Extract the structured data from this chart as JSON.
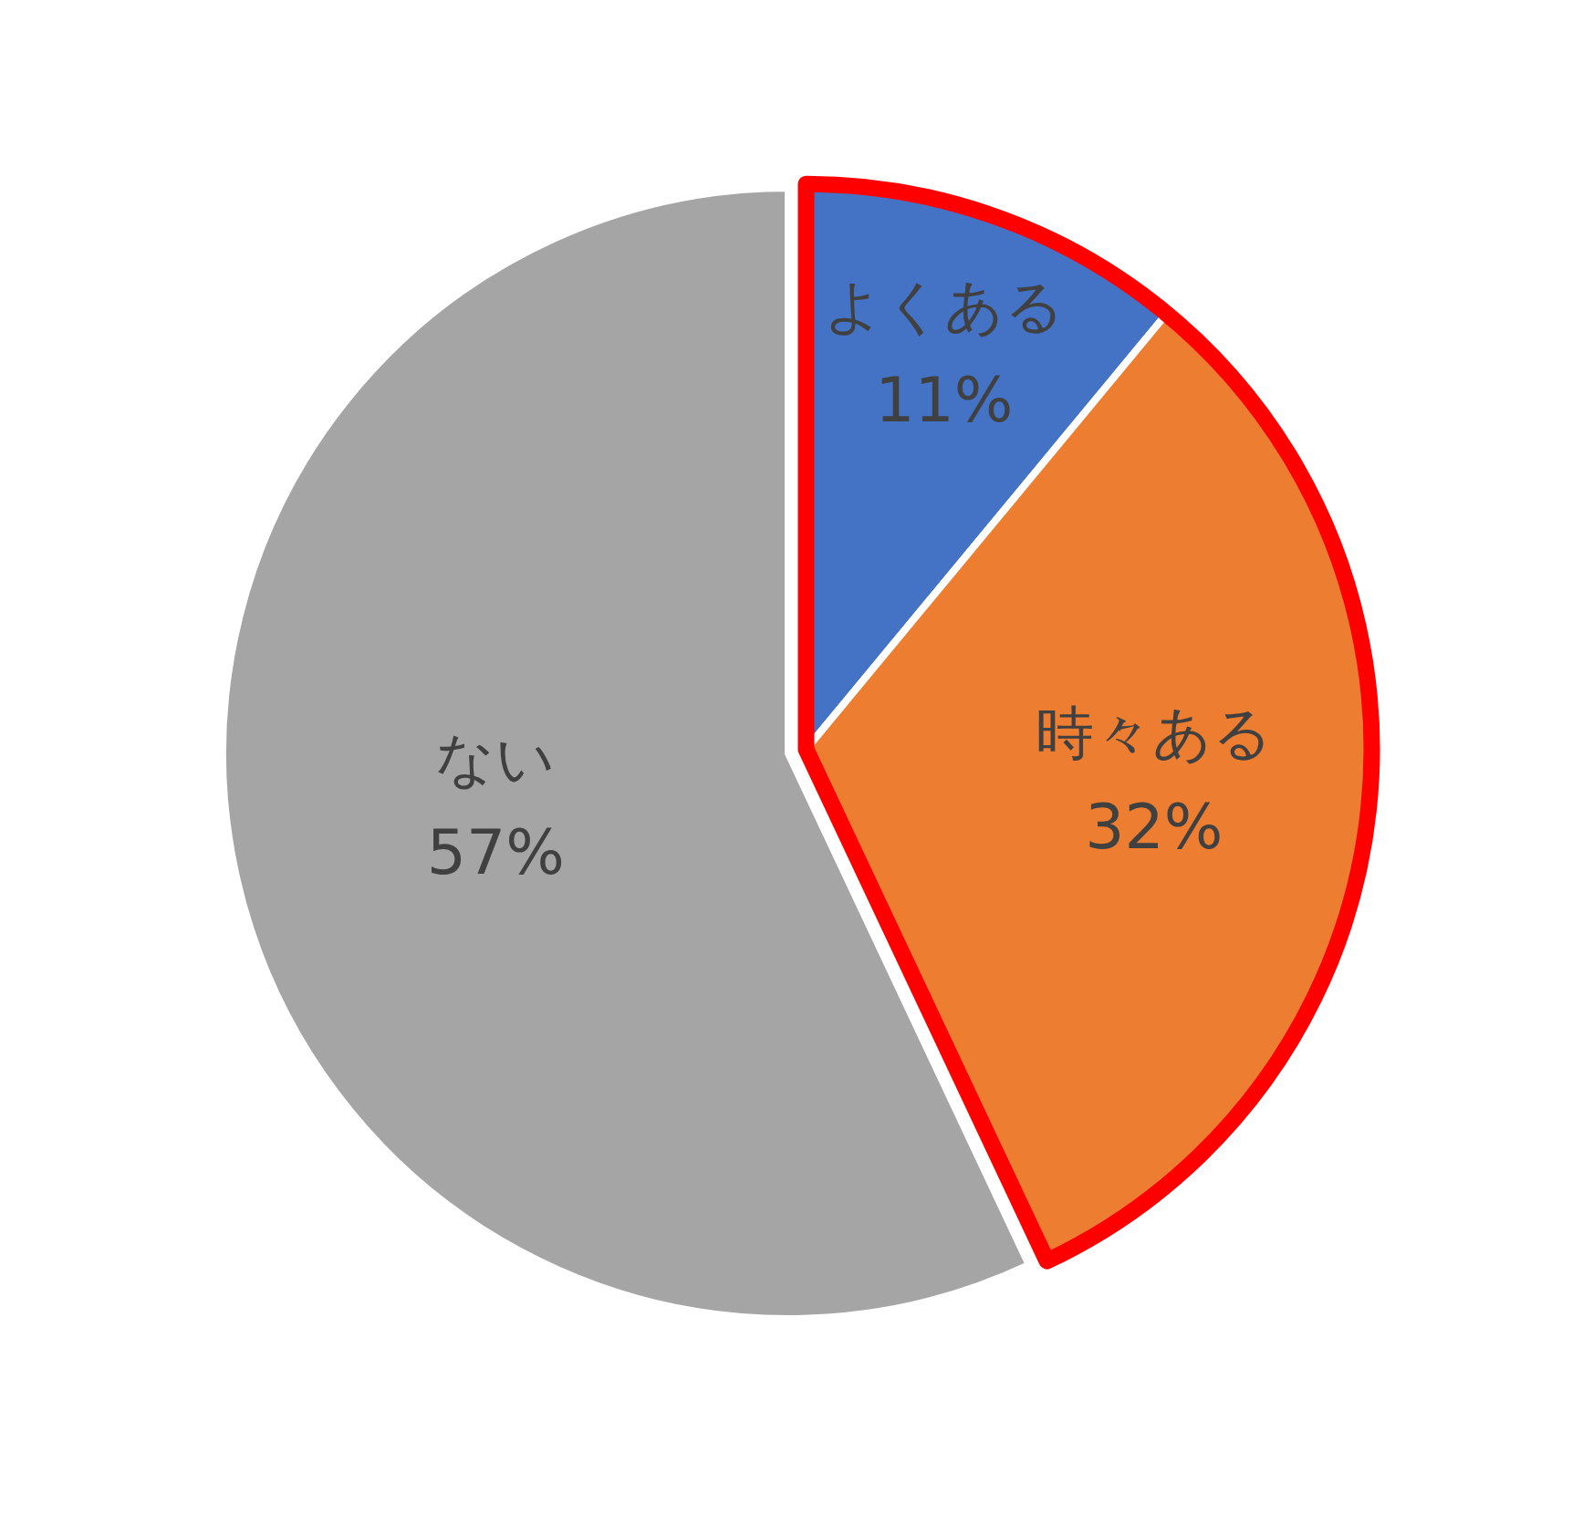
{
  "chart_data": {
    "type": "pie",
    "categories": [
      "よくある",
      "時々ある",
      "ない"
    ],
    "values": [
      11,
      32,
      57
    ],
    "colors": [
      "#4472c4",
      "#ed7d31",
      "#a5a5a5"
    ],
    "value_labels": [
      "11%",
      "32%",
      "57%"
    ]
  }
}
